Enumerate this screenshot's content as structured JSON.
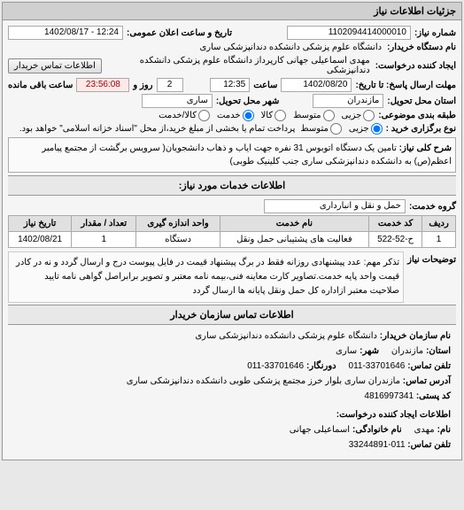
{
  "header": {
    "title": "جزئیات اطلاعات نیاز"
  },
  "info": {
    "need_no_label": "شماره نیاز:",
    "need_no": "1102094414000010",
    "public_date_label": "تاریخ و ساعت اعلان عمومی:",
    "public_date": "12:24 - 1402/08/17",
    "buyer_org_label": "نام دستگاه خریدار:",
    "buyer_org": "دانشگاه علوم پزشکی دانشکده دندانپزشکی ساری",
    "requester_label": "ایجاد کننده درخواست:",
    "requester": "مهدی اسماعیلی جهانی کارپرداز دانشگاه علوم پزشکی دانشکده دندانپزشکی",
    "buyer_contact_btn": "اطلاعات تماس خریدار",
    "deadline_label": "مهلت ارسال پاسخ: تا تاریخ:",
    "deadline_date": "1402/08/20",
    "deadline_time_label": "ساعت",
    "deadline_time": "12:35",
    "days_label": "روز و",
    "days": "2",
    "remain_time": "23:56:08",
    "remain_label": "ساعت باقی مانده",
    "delivery_province_label": "استان محل تحویل:",
    "delivery_province": "مازندران",
    "delivery_city_label": "شهر محل تحویل:",
    "delivery_city": "ساری",
    "budget_type_label": "طبقه بندی موضوعی:",
    "budget_opts": [
      "جزیی",
      "متوسط",
      "کالا",
      "خدمت",
      "کالا/خدمت"
    ],
    "budget_selected": 3,
    "payment_type_label": "نوع برگزاری خرید :",
    "payment_opts": [
      "جزیی",
      "متوسط"
    ],
    "payment_selected": 0,
    "payment_note": "پرداخت تمام یا بخشی از مبلغ خرید،از محل \"اسناد خزانه اسلامی\" خواهد بود."
  },
  "main_desc": {
    "label": "شرح کلی نیاز:",
    "text": "تامین یک دستگاه اتوبوس 31 نفره جهت ایاب و ذهاب دانشجویان( سرویس برگشت از مجتمع پیامبر اعظم(ص) به دانشکده دندانپزشکی ساری جنب کلینیک طوبی)"
  },
  "service_section": {
    "title": "اطلاعات خدمات مورد نیاز:",
    "group_label": "گروه خدمت:",
    "group_value": "حمل و نقل و انبارداری",
    "table": {
      "headers": [
        "ردیف",
        "کد خدمت",
        "نام خدمت",
        "واحد اندازه گیری",
        "تعداد / مقدار",
        "تاریخ نیاز"
      ],
      "rows": [
        [
          "1",
          "ح-52-522",
          "فعالیت های پشتیبانی حمل ونقل",
          "دستگاه",
          "1",
          "1402/08/21"
        ]
      ]
    },
    "notes_label": "توضیحات نیاز",
    "notes": "تذکر مهم: عدد پیشنهادی روزانه فقط در برگ پیشنهاد قیمت در فایل پیوست درج و ارسال گردد و نه در کادر قیمت واحد پایه خدمت.تصاویر کارت معاینه فنی،بیمه نامه معتبر و تصویر برابراصل گواهی نامه تایید صلاحیت معتبر ازاداره کل حمل ونقل پایانه ها ارسال گردد"
  },
  "contact": {
    "title": "اطلاعات تماس سازمان خریدار",
    "org_label": "نام سازمان خریدار:",
    "org": "دانشگاه علوم پزشکی دانشکده دندانپزشکی ساری",
    "province_label": "استان:",
    "province": "مازندران",
    "city_label": "شهر:",
    "city": "ساری",
    "phone_label": "تلفن تماس:",
    "phone": "011-33701646",
    "fax_label": "دورنگار:",
    "fax": "011-33701646",
    "address_label": "آدرس تماس:",
    "address": "مازندران ساری بلوار خرز مجتمع پزشکی طوبی دانشکده دندانپزشکی ساری",
    "postal_label": "کد پستی:",
    "postal": "4816997341",
    "creator_title": "اطلاعات ایجاد کننده درخواست:",
    "name_label": "نام:",
    "name": "مهدی",
    "family_label": "نام خانوادگی:",
    "family": "اسماعیلی جهانی",
    "cphone_label": "تلفن تماس:",
    "cphone": "011-33244891"
  }
}
